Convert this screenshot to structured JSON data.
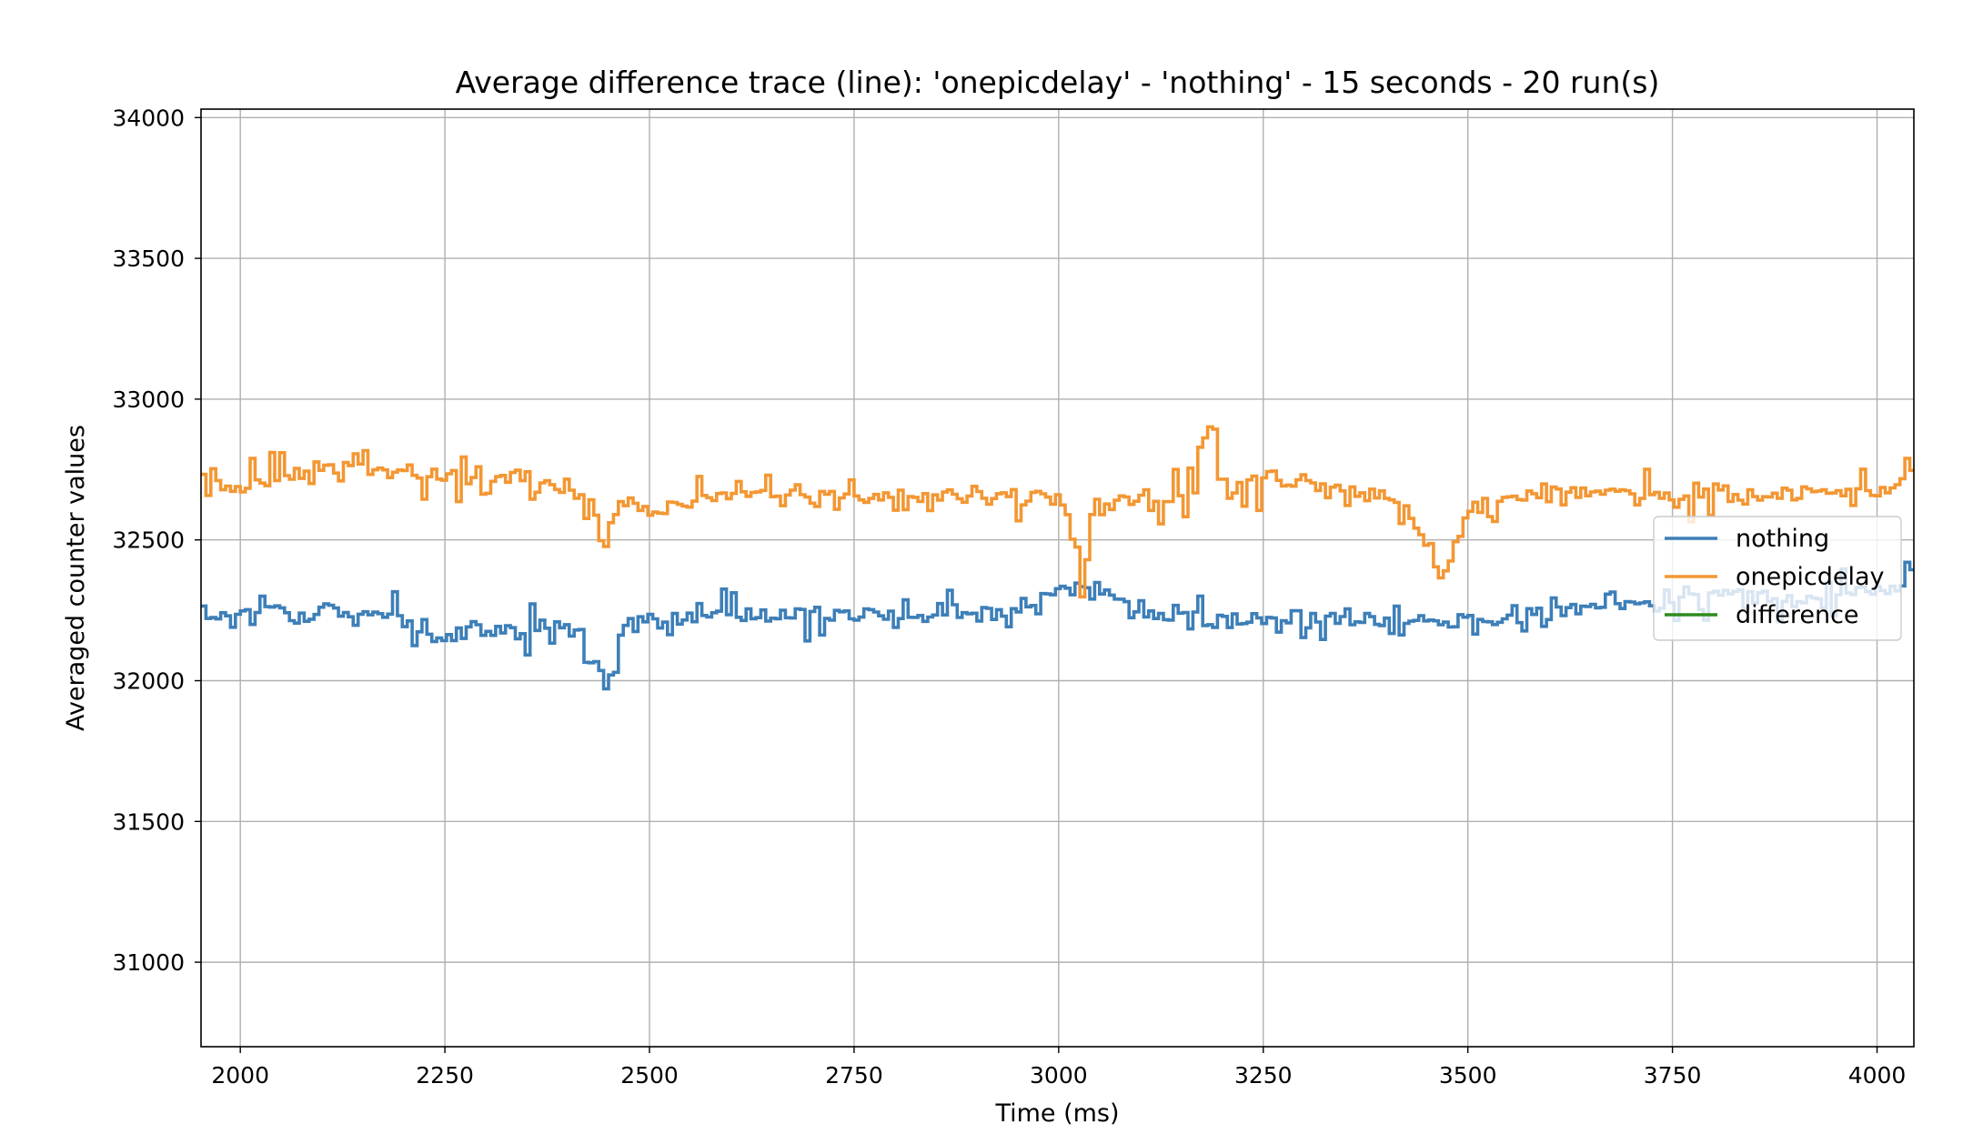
{
  "chart_data": {
    "type": "line",
    "title": "Average difference trace (line): 'onepicdelay' - 'nothing' - 15 seconds - 20 run(s)",
    "xlabel": "Time (ms)",
    "ylabel": "Averaged counter values",
    "xlim": [
      1952,
      4045
    ],
    "ylim": [
      30700,
      34030
    ],
    "xticks": [
      2000,
      2250,
      2500,
      2750,
      3000,
      3250,
      3500,
      3750,
      4000
    ],
    "yticks": [
      31000,
      31500,
      32000,
      32500,
      33000,
      33500,
      34000
    ],
    "grid": true,
    "legend_position": "center-right",
    "series": [
      {
        "name": "nothing",
        "color": "#3d7fb8",
        "keypoints": [
          [
            1952,
            32230
          ],
          [
            2000,
            32240
          ],
          [
            2100,
            32260
          ],
          [
            2200,
            32210
          ],
          [
            2250,
            32160
          ],
          [
            2300,
            32180
          ],
          [
            2400,
            32190
          ],
          [
            2435,
            32050
          ],
          [
            2440,
            31910
          ],
          [
            2460,
            32170
          ],
          [
            2500,
            32210
          ],
          [
            2600,
            32230
          ],
          [
            2700,
            32240
          ],
          [
            2800,
            32230
          ],
          [
            2950,
            32240
          ],
          [
            3000,
            32320
          ],
          [
            3050,
            32330
          ],
          [
            3100,
            32240
          ],
          [
            3200,
            32210
          ],
          [
            3300,
            32230
          ],
          [
            3400,
            32210
          ],
          [
            3500,
            32210
          ],
          [
            3600,
            32240
          ],
          [
            3700,
            32270
          ],
          [
            3800,
            32300
          ],
          [
            3900,
            32300
          ],
          [
            3950,
            32300
          ],
          [
            4010,
            32320
          ],
          [
            4045,
            32380
          ]
        ]
      },
      {
        "name": "onepicdelay",
        "color": "#f39733",
        "keypoints": [
          [
            1952,
            32680
          ],
          [
            2000,
            32690
          ],
          [
            2100,
            32760
          ],
          [
            2200,
            32730
          ],
          [
            2300,
            32710
          ],
          [
            2400,
            32690
          ],
          [
            2430,
            32620
          ],
          [
            2440,
            32450
          ],
          [
            2460,
            32640
          ],
          [
            2500,
            32610
          ],
          [
            2600,
            32660
          ],
          [
            2700,
            32650
          ],
          [
            2800,
            32650
          ],
          [
            2950,
            32660
          ],
          [
            3000,
            32650
          ],
          [
            3020,
            32450
          ],
          [
            3025,
            32310
          ],
          [
            3040,
            32600
          ],
          [
            3100,
            32660
          ],
          [
            3150,
            32650
          ],
          [
            3180,
            32900
          ],
          [
            3200,
            32700
          ],
          [
            3300,
            32700
          ],
          [
            3400,
            32650
          ],
          [
            3440,
            32520
          ],
          [
            3470,
            32350
          ],
          [
            3500,
            32620
          ],
          [
            3600,
            32680
          ],
          [
            3700,
            32660
          ],
          [
            3800,
            32660
          ],
          [
            3900,
            32660
          ],
          [
            4000,
            32660
          ],
          [
            4045,
            32780
          ]
        ]
      },
      {
        "name": "difference",
        "color": "#2e8b1e",
        "keypoints": []
      }
    ]
  }
}
